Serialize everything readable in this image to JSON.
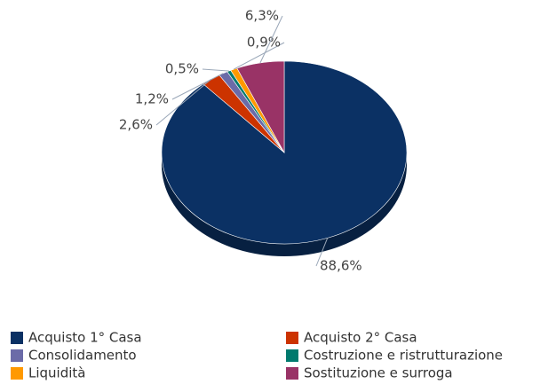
{
  "chart_data": {
    "type": "pie",
    "categories": [
      "Acquisto 1° Casa",
      "Acquisto 2° Casa",
      "Consolidamento",
      "Costruzione e ristrutturazione",
      "Liquidità",
      "Sostituzione e surroga"
    ],
    "values": [
      88.6,
      2.6,
      1.2,
      0.5,
      0.9,
      6.3
    ],
    "value_labels": [
      "88,6%",
      "2,6%",
      "1,2%",
      "0,5%",
      "0,9%",
      "6,3%"
    ],
    "colors": [
      "#0b3164",
      "#cc3300",
      "#6b6ba8",
      "#007a6e",
      "#ff9900",
      "#993366"
    ],
    "legend": "bottom"
  }
}
